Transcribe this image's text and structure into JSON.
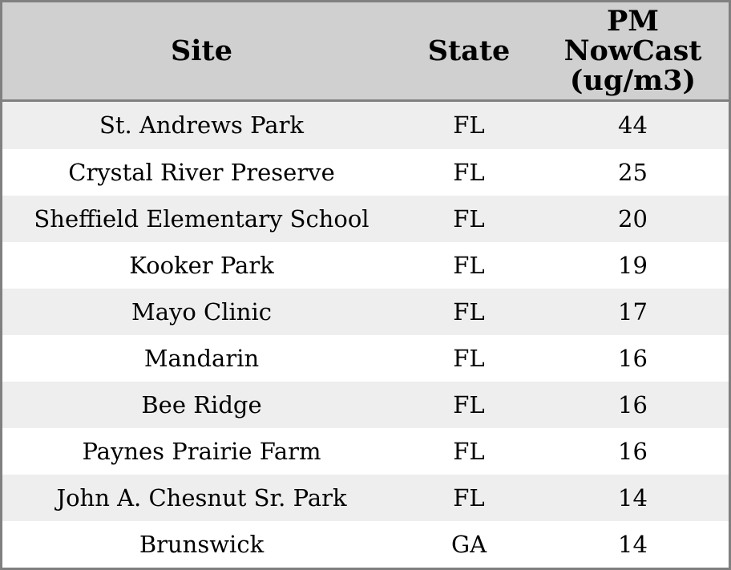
{
  "chart_data": {
    "type": "table",
    "columns": [
      "Site",
      "State",
      "PM NowCast (ug/m3)"
    ],
    "header_display": [
      "Site",
      "State",
      "PM\nNowCast\n(ug/m3)"
    ],
    "rows": [
      [
        "St. Andrews Park",
        "FL",
        44
      ],
      [
        "Crystal River Preserve",
        "FL",
        25
      ],
      [
        "Sheffield Elementary School",
        "FL",
        20
      ],
      [
        "Kooker Park",
        "FL",
        19
      ],
      [
        "Mayo Clinic",
        "FL",
        17
      ],
      [
        "Mandarin",
        "FL",
        16
      ],
      [
        "Bee Ridge",
        "FL",
        16
      ],
      [
        "Paynes Prairie Farm",
        "FL",
        16
      ],
      [
        "John A. Chesnut Sr. Park",
        "FL",
        14
      ],
      [
        "Brunswick",
        "GA",
        14
      ]
    ],
    "layout_hints": {
      "header_position": "top",
      "grid": "off",
      "row_striping": "odd-rows-shaded",
      "alignment": "center"
    }
  },
  "style": {
    "header_bg": "#d0d0d0",
    "border_color": "#808080",
    "row_alt_bg": "#eeeeee",
    "row_bg": "#ffffff",
    "text_color": "#000000"
  }
}
